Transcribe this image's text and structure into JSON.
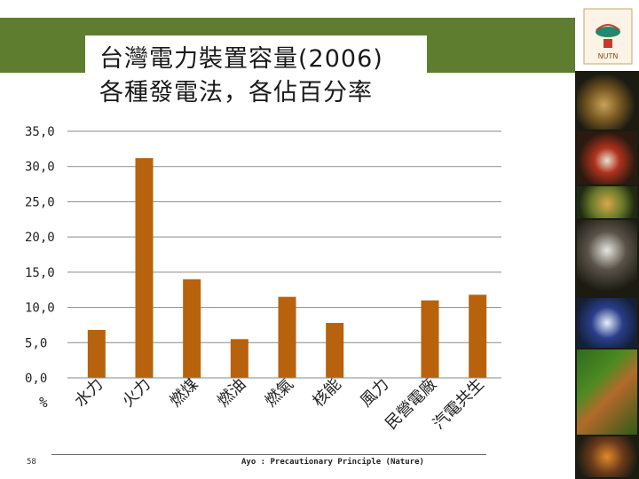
{
  "slide": {
    "title_line1": "台灣電力裝置容量(2006)",
    "title_line2": "各種發電法，各佔百分率",
    "page_number": "58",
    "footer_note": "Ayo : Precautionary Principle (Nature)",
    "logo_text": "NUTN"
  },
  "colors": {
    "header_band": "#5e7d2e",
    "bar": "#b8620e",
    "grid": "#8a8a8a"
  },
  "chart_data": {
    "type": "bar",
    "title": "",
    "xlabel": "",
    "ylabel": "%",
    "ylim": [
      0,
      35
    ],
    "ytick_labels": [
      "0,0",
      "5,0",
      "10,0",
      "15,0",
      "20,0",
      "25,0",
      "30,0",
      "35,0"
    ],
    "grid": true,
    "categories": [
      "水力",
      "火力",
      "燃煤",
      "燃油",
      "燃氣",
      "核能",
      "風力",
      "民營電廠",
      "汽電共生"
    ],
    "values": [
      6.8,
      31.2,
      14.0,
      5.5,
      11.5,
      7.8,
      0.0,
      11.0,
      11.8
    ]
  }
}
